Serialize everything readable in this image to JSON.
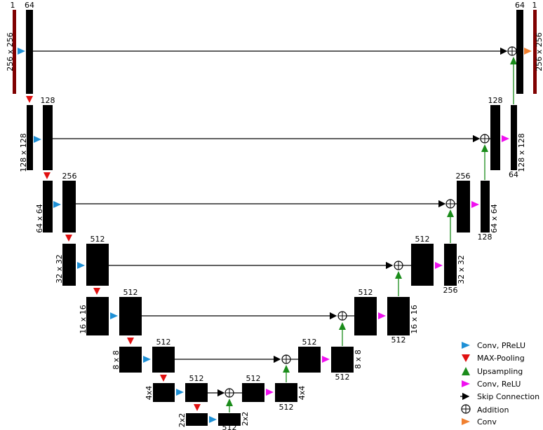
{
  "colors": {
    "conv_prelu": "#1e90d6",
    "max_pooling": "#e01010",
    "upsampling": "#1a8c1a",
    "conv_relu": "#f010f0",
    "skip": "#000000",
    "conv_out": "#f08030",
    "io_bar": "#800000"
  },
  "encoder": {
    "level1": {
      "in_channels": "1",
      "channels": "64",
      "size": "256 x 256"
    },
    "level2": {
      "channels": "128",
      "size": "128 x 128"
    },
    "level3": {
      "channels": "256",
      "size": "64 x 64"
    },
    "level4": {
      "channels": "512",
      "size": "32 x 32"
    },
    "level5": {
      "channels": "512",
      "size": "16 x 16"
    },
    "level6": {
      "channels": "512",
      "size": "8 x 8"
    },
    "level7": {
      "channels": "512",
      "size": "4x4"
    },
    "bottom": {
      "channels": "512",
      "size_left": "2x2",
      "size_right": "2x2"
    }
  },
  "decoder": {
    "level7": {
      "channels_top": "512",
      "channels_bottom": "512",
      "size": "4x4"
    },
    "level6": {
      "channels_top": "512",
      "channels_bottom": "512",
      "size": "8 x 8"
    },
    "level5": {
      "channels_top": "512",
      "channels_bottom": "512",
      "size": "16 x 16"
    },
    "level4": {
      "channels_top": "512",
      "channels_bottom": "256",
      "size": "32 x 32"
    },
    "level3": {
      "channels_top": "256",
      "channels_bottom": "128",
      "size": "64 x 64"
    },
    "level2": {
      "channels_top": "128",
      "channels_bottom": "64",
      "size": "128 x 128"
    },
    "level1": {
      "channels": "64",
      "out_channels": "1",
      "size": "256 x 256"
    }
  },
  "legend": {
    "conv_prelu": "Conv, PReLU",
    "max_pooling": "MAX-Pooling",
    "upsampling": "Upsampling",
    "conv_relu": "Conv, ReLU",
    "skip": "Skip Connection",
    "addition": "Addition",
    "conv": "Conv"
  }
}
